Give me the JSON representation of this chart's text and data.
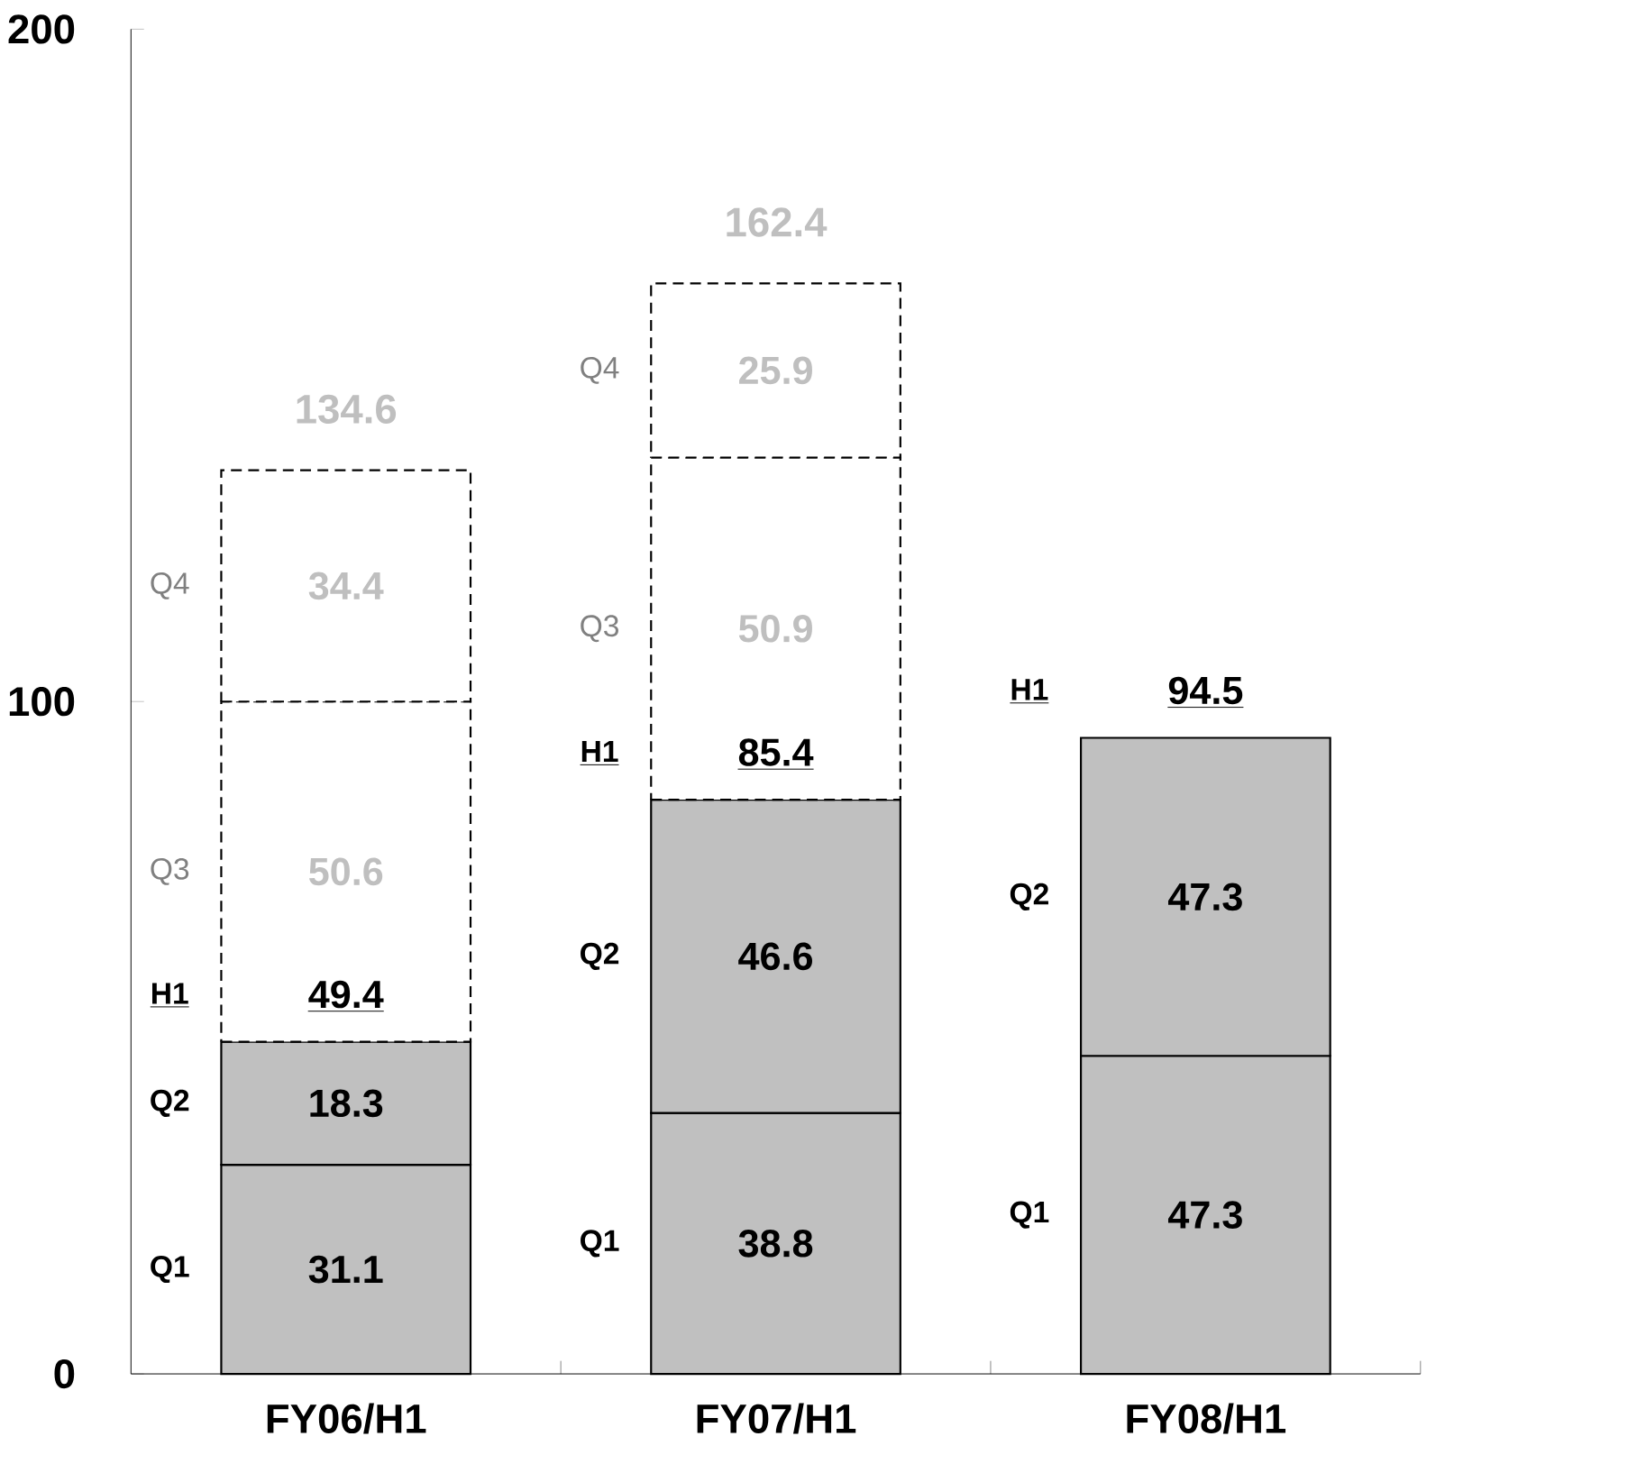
{
  "chart_data": {
    "type": "bar",
    "stacked": true,
    "categories": [
      "FY06/H1",
      "FY07/H1",
      "FY08/H1"
    ],
    "series": [
      {
        "name": "Q1",
        "color": "#c0c0c0",
        "values": [
          31.1,
          38.8,
          47.3
        ]
      },
      {
        "name": "Q2",
        "color": "#c0c0c0",
        "values": [
          18.3,
          46.6,
          47.3
        ]
      },
      {
        "name": "Q3",
        "color": "#ffffff",
        "line_style": "dashed",
        "values": [
          50.6,
          50.9,
          null
        ]
      },
      {
        "name": "Q4",
        "color": "#ffffff",
        "line_style": "dashed",
        "values": [
          34.4,
          25.9,
          null
        ]
      }
    ],
    "data_labels": true,
    "totals": [
      "134.6",
      "162.4",
      null
    ],
    "annotations": [
      "H1",
      {
        "text": "49.4",
        "x": "FY06/H1",
        "y": 49.4
      },
      "H1",
      {
        "text": "85.4",
        "x": "FY07/H1",
        "y": 85.4
      },
      "H1",
      {
        "text": "94.5",
        "x": "FY08/H1",
        "y": 94.6
      }
    ],
    "ylim": [
      0,
      200
    ],
    "yticks": [
      0,
      100,
      200
    ]
  }
}
